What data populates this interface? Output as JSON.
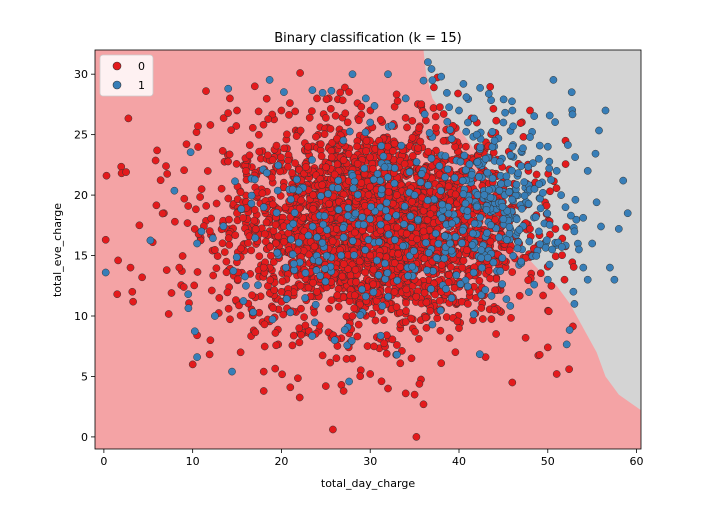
{
  "chart_data": {
    "type": "scatter",
    "title": "Binary classification (k = 15)",
    "xlabel": "total_day_charge",
    "ylabel": "total_eve_charge",
    "xlim": [
      -1,
      60.5
    ],
    "ylim": [
      -1,
      32
    ],
    "xticks": [
      0,
      10,
      20,
      30,
      40,
      50,
      60
    ],
    "yticks": [
      0,
      5,
      10,
      15,
      20,
      25,
      30
    ],
    "grid": false,
    "legend": {
      "location": "top-left",
      "entries": [
        "0",
        "1"
      ]
    },
    "colors": {
      "class_0_point": "#e41a1c",
      "class_1_point": "#377eb8",
      "region_0": "#f4a3a5",
      "region_1": "#d4d4d4",
      "point_edge": "#333333"
    },
    "decision_boundary": [
      [
        36.0,
        32
      ],
      [
        36.3,
        30
      ],
      [
        37.0,
        28
      ],
      [
        38.0,
        27
      ],
      [
        39.0,
        26.3
      ],
      [
        40.0,
        25.5
      ],
      [
        41.0,
        24.5
      ],
      [
        42.0,
        23.5
      ],
      [
        43.5,
        21.5
      ],
      [
        44.5,
        19.0
      ],
      [
        45.0,
        17.5
      ],
      [
        46.0,
        16.0
      ],
      [
        47.5,
        15.0
      ],
      [
        49.0,
        13.8
      ],
      [
        51.0,
        12.5
      ],
      [
        52.5,
        11.0
      ],
      [
        54.0,
        9.0
      ],
      [
        55.5,
        7.0
      ],
      [
        56.5,
        5.0
      ],
      [
        58.0,
        3.5
      ],
      [
        60.5,
        2.2
      ]
    ],
    "series": [
      {
        "name": "0",
        "approx_count": 2850,
        "visible_points": [
          [
            0.2,
            16.3
          ],
          [
            0.3,
            21.6
          ],
          [
            1.5,
            11.8
          ],
          [
            1.6,
            14.6
          ],
          [
            2.0,
            21.8
          ],
          [
            2.5,
            21.9
          ],
          [
            3.0,
            14.0
          ],
          [
            3.2,
            12.0
          ],
          [
            4.0,
            17.5
          ],
          [
            4.3,
            13.2
          ],
          [
            5.5,
            16.1
          ],
          [
            6.0,
            23.7
          ],
          [
            7.0,
            22.4
          ],
          [
            8.0,
            17.8
          ],
          [
            8.5,
            14.0
          ],
          [
            9.0,
            12.4
          ],
          [
            9.5,
            19.1
          ],
          [
            10.0,
            6.0
          ],
          [
            10.5,
            8.4
          ],
          [
            10.6,
            25.7
          ],
          [
            11.5,
            28.6
          ],
          [
            12.0,
            25.8
          ],
          [
            12.0,
            8.0
          ],
          [
            14.2,
            28.0
          ],
          [
            15.0,
            27.0
          ],
          [
            15.4,
            7.0
          ],
          [
            17.0,
            29.0
          ],
          [
            18.0,
            5.4
          ],
          [
            18.0,
            3.8
          ],
          [
            19.0,
            22.9
          ],
          [
            21.0,
            4.1
          ],
          [
            22.1,
            30.1
          ],
          [
            22.3,
            16.5
          ],
          [
            24.0,
            28.0
          ],
          [
            25.0,
            4.2
          ],
          [
            26.0,
            21.7
          ],
          [
            27.0,
            3.8
          ],
          [
            28.0,
            22.1
          ],
          [
            29.0,
            27.3
          ],
          [
            30.0,
            5.2
          ],
          [
            32.0,
            4.0
          ],
          [
            33.0,
            7.6
          ],
          [
            34.0,
            3.6
          ],
          [
            35.0,
            3.5
          ],
          [
            35.2,
            0.0
          ],
          [
            36.0,
            2.7
          ],
          [
            38.0,
            6.1
          ],
          [
            41.0,
            11.0
          ],
          [
            43.0,
            6.6
          ],
          [
            46.0,
            4.5
          ],
          [
            48.0,
            27.0
          ],
          [
            50.0,
            7.4
          ],
          [
            51.0,
            5.2
          ],
          [
            52.0,
            24.5
          ],
          [
            52.4,
            5.6
          ],
          [
            38.0,
            12.0
          ],
          [
            40.0,
            9.0
          ],
          [
            44.0,
            10.5
          ],
          [
            47.5,
            8.2
          ],
          [
            20.0,
            12.0
          ],
          [
            25.0,
            18.0
          ],
          [
            30.0,
            15.0
          ],
          [
            33.0,
            20.0
          ],
          [
            35.0,
            13.0
          ],
          [
            28.0,
            10.0
          ],
          [
            23.0,
            24.0
          ],
          [
            15.0,
            18.5
          ],
          [
            18.0,
            14.0
          ],
          [
            22.0,
            9.0
          ],
          [
            26.0,
            13.5
          ],
          [
            31.0,
            24.5
          ],
          [
            36.0,
            17.0
          ],
          [
            39.0,
            19.5
          ],
          [
            42.0,
            15.0
          ],
          [
            27.0,
            19.0
          ],
          [
            34.0,
            9.5
          ],
          [
            16.0,
            22.0
          ],
          [
            13.0,
            11.5
          ],
          [
            20.0,
            27.0
          ],
          [
            24.0,
            12.0
          ],
          [
            29.0,
            21.0
          ],
          [
            32.0,
            11.5
          ],
          [
            37.0,
            14.5
          ],
          [
            41.0,
            20.5
          ]
        ]
      },
      {
        "name": "1",
        "approx_count": 480,
        "visible_points": [
          [
            0.2,
            13.6
          ],
          [
            14.0,
            28.8
          ],
          [
            17.0,
            21.3
          ],
          [
            28.0,
            30.0
          ],
          [
            29.5,
            28.0
          ],
          [
            32.0,
            30.0
          ],
          [
            34.0,
            28.0
          ],
          [
            36.5,
            31.0
          ],
          [
            37.0,
            29.5
          ],
          [
            38.0,
            29.8
          ],
          [
            40.5,
            29.2
          ],
          [
            39.0,
            25.4
          ],
          [
            40.0,
            27.0
          ],
          [
            41.0,
            26.0
          ],
          [
            42.0,
            25.0
          ],
          [
            43.0,
            23.0
          ],
          [
            44.0,
            24.5
          ],
          [
            45.0,
            26.0
          ],
          [
            46.0,
            24.0
          ],
          [
            47.0,
            22.4
          ],
          [
            48.0,
            24.8
          ],
          [
            49.0,
            23.0
          ],
          [
            50.0,
            24.0
          ],
          [
            51.0,
            22.0
          ],
          [
            51.5,
            20.0
          ],
          [
            52.0,
            19.0
          ],
          [
            52.6,
            18.3
          ],
          [
            53.0,
            17.0
          ],
          [
            53.5,
            15.5
          ],
          [
            54.0,
            14.0
          ],
          [
            54.5,
            13.0
          ],
          [
            55.0,
            16.0
          ],
          [
            55.5,
            19.4
          ],
          [
            56.0,
            17.4
          ],
          [
            56.5,
            27.0
          ],
          [
            57.0,
            14.0
          ],
          [
            57.5,
            13.0
          ],
          [
            58.0,
            17.2
          ],
          [
            58.5,
            21.2
          ],
          [
            59.0,
            18.5
          ],
          [
            54.5,
            22.0
          ],
          [
            53.0,
            11.0
          ],
          [
            50.5,
            15.5
          ],
          [
            49.0,
            17.0
          ],
          [
            48.5,
            20.5
          ],
          [
            46.5,
            18.0
          ],
          [
            45.5,
            21.0
          ],
          [
            44.5,
            16.5
          ],
          [
            47.0,
            14.5
          ],
          [
            50.0,
            13.0
          ],
          [
            12.5,
            10.0
          ],
          [
            16.0,
            12.5
          ],
          [
            21.0,
            10.3
          ],
          [
            26.0,
            8.0
          ],
          [
            33.0,
            6.8
          ],
          [
            37.0,
            9.3
          ],
          [
            10.5,
            16.0
          ],
          [
            18.0,
            19.0
          ],
          [
            9.5,
            11.8
          ],
          [
            10.5,
            6.6
          ],
          [
            11.0,
            17.0
          ],
          [
            20.5,
            14.0
          ],
          [
            27.0,
            16.5
          ],
          [
            30.0,
            26.0
          ],
          [
            35.0,
            20.0
          ],
          [
            39.0,
            16.0
          ]
        ]
      }
    ]
  }
}
